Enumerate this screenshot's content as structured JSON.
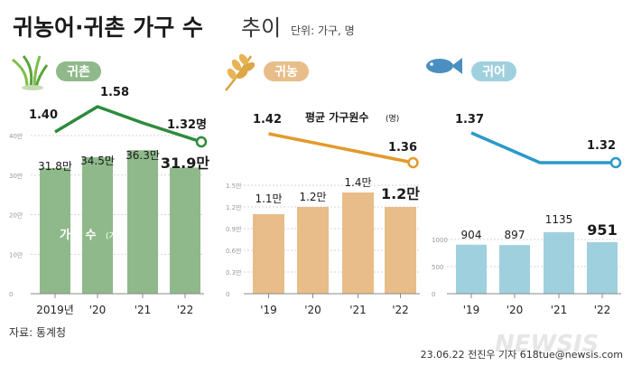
{
  "header": {
    "title": "귀농어·귀촌 가구 수",
    "title_suffix": "추이",
    "unit": "단위: 가구, 명"
  },
  "annotations": {
    "household_label": "가구 수",
    "household_unit": "(가구)",
    "avg_label": "평균 가구원수",
    "avg_unit": "(명)"
  },
  "footer": {
    "source": "자료: 통계청",
    "credit": "23.06.22 전진우 기자 618tue@newsis.com",
    "watermark": "NEWSIS"
  },
  "colors": {
    "rural_bar": "#8fb98a",
    "rural_line": "#2e8b3c",
    "farm_bar": "#e8bd8a",
    "farm_line": "#e39a2c",
    "fish_bar": "#9fd0de",
    "fish_line": "#2a9ac9",
    "grid": "#c9c9c9",
    "axis": "#888888"
  },
  "chart_data": [
    {
      "type": "bar",
      "title": "귀촌",
      "icon": "grass-icon",
      "categories": [
        "2019년",
        "'20",
        "'21",
        "'22"
      ],
      "values": [
        318000,
        345000,
        363000,
        319000
      ],
      "value_labels": [
        "31.8만",
        "34.5만",
        "36.3만",
        "31.9만"
      ],
      "ylim": [
        0,
        400000
      ],
      "ticks": [
        0,
        100000,
        200000,
        300000,
        400000
      ],
      "tick_labels": [
        "0",
        "10만",
        "20만",
        "30만",
        "40만"
      ],
      "line": {
        "values": [
          1.4,
          1.58,
          null,
          1.32
        ],
        "labels": [
          "1.40",
          "1.58",
          "",
          "1.32명"
        ]
      }
    },
    {
      "type": "bar",
      "title": "귀농",
      "icon": "wheat-icon",
      "categories": [
        "'19",
        "'20",
        "'21",
        "'22"
      ],
      "values": [
        11000,
        12000,
        14000,
        12000
      ],
      "value_labels": [
        "1.1만",
        "1.2만",
        "1.4만",
        "1.2만"
      ],
      "ylim": [
        0,
        15000
      ],
      "ticks": [
        0,
        3000,
        6000,
        9000,
        12000,
        15000
      ],
      "tick_labels": [
        "0",
        "0.3만",
        "0.6만",
        "0.9만",
        "1.2만",
        "1.5만"
      ],
      "line": {
        "values": [
          1.42,
          null,
          null,
          1.36
        ],
        "labels": [
          "1.42",
          "",
          "",
          "1.36"
        ]
      }
    },
    {
      "type": "bar",
      "title": "귀어",
      "icon": "fish-icon",
      "categories": [
        "'19",
        "'20",
        "'21",
        "'22"
      ],
      "values": [
        904,
        897,
        1135,
        951
      ],
      "value_labels": [
        "904",
        "897",
        "1135",
        "951"
      ],
      "ylim": [
        0,
        1000
      ],
      "ticks": [
        0,
        500,
        1000
      ],
      "tick_labels": [
        "0",
        "500",
        "1000"
      ],
      "line": {
        "values": [
          1.37,
          null,
          null,
          1.32
        ],
        "labels": [
          "1.37",
          "",
          "",
          "1.32"
        ]
      }
    }
  ]
}
